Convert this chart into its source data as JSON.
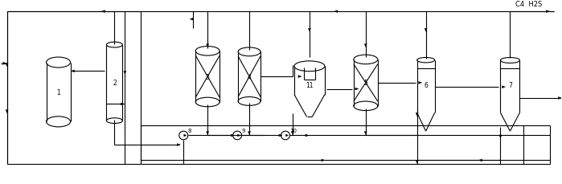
{
  "bg_color": "#ffffff",
  "line_color": "#000000",
  "figsize": [
    6.99,
    2.3
  ],
  "dpi": 100,
  "label_c4_h2s": "C4  H2S"
}
